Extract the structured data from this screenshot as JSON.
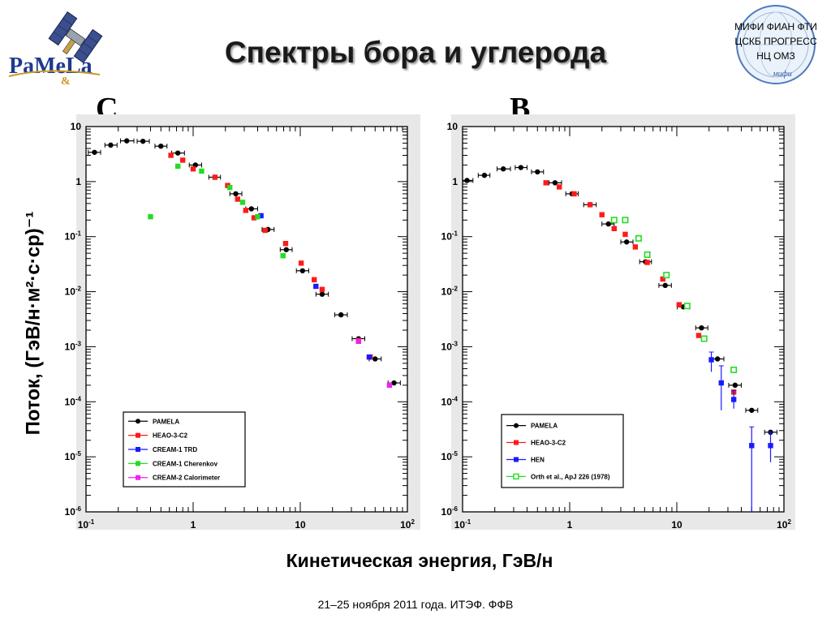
{
  "slide": {
    "title": "Спектры бора и углерода",
    "y_axis_title": "Поток, (ГэВ/н·м²·с·ср)⁻¹",
    "x_axis_title": "Кинетическая энергия, ГэВ/н",
    "footer": "21–25 ноября 2011 года. ИТЭФ. ФФВ"
  },
  "logo": {
    "text_main": "PaMeLa",
    "text_sub": "&",
    "icon": "satellite-icon"
  },
  "partners": {
    "line1": "МИФИ   ФИАН   ФТИ",
    "line2": "ЦСКБ  ПРОГРЕСС",
    "line3": "НЦ  ОМЗ",
    "signature": "мифи",
    "icon": "globe-seal-icon"
  },
  "colors": {
    "pamela": "#000000",
    "heao": "#ff1a1a",
    "cream1_trd": "#1a1aff",
    "cream1_cherenkov": "#22dd22",
    "cream2_calorimeter": "#ee22ee",
    "hen": "#1a1aff",
    "orth": "#22dd22"
  },
  "chart_data": [
    {
      "type": "scatter",
      "panel_letter": "C",
      "x_scale": "log",
      "y_scale": "log",
      "xlim": [
        0.1,
        100
      ],
      "ylim": [
        1e-06,
        10
      ],
      "x_ticks": [
        "10",
        "-1",
        "1",
        "",
        "10",
        "",
        "10",
        "2"
      ],
      "y_ticks": [
        {
          "base": "10",
          "exp": ""
        },
        {
          "base": "1",
          "exp": ""
        },
        {
          "base": "10",
          "exp": "-1"
        },
        {
          "base": "10",
          "exp": "-2"
        },
        {
          "base": "10",
          "exp": "-3"
        },
        {
          "base": "10",
          "exp": "-4"
        },
        {
          "base": "10",
          "exp": "-5"
        },
        {
          "base": "10",
          "exp": "-6"
        }
      ],
      "legend_position": "bottom-left",
      "series": [
        {
          "name": "PAMELA",
          "color_key": "pamela",
          "marker": "circle",
          "points": [
            {
              "x": 0.12,
              "y": 3.4,
              "xlo": 0.105,
              "xhi": 0.137
            },
            {
              "x": 0.17,
              "y": 4.6,
              "xlo": 0.15,
              "xhi": 0.195
            },
            {
              "x": 0.24,
              "y": 5.5,
              "xlo": 0.21,
              "xhi": 0.28
            },
            {
              "x": 0.34,
              "y": 5.4,
              "xlo": 0.3,
              "xhi": 0.39
            },
            {
              "x": 0.5,
              "y": 4.4,
              "xlo": 0.44,
              "xhi": 0.57
            },
            {
              "x": 0.72,
              "y": 3.3,
              "xlo": 0.63,
              "xhi": 0.83
            },
            {
              "x": 1.05,
              "y": 2.0,
              "xlo": 0.92,
              "xhi": 1.2
            },
            {
              "x": 1.6,
              "y": 1.2,
              "xlo": 1.4,
              "xhi": 1.8
            },
            {
              "x": 2.5,
              "y": 0.6,
              "xlo": 2.2,
              "xhi": 2.85
            },
            {
              "x": 3.5,
              "y": 0.32,
              "xlo": 3.1,
              "xhi": 4.0
            },
            {
              "x": 5.0,
              "y": 0.135,
              "xlo": 4.4,
              "xhi": 5.7
            },
            {
              "x": 7.4,
              "y": 0.058,
              "xlo": 6.5,
              "xhi": 8.4
            },
            {
              "x": 10.5,
              "y": 0.024,
              "xlo": 9.2,
              "xhi": 12
            },
            {
              "x": 16,
              "y": 0.009,
              "xlo": 14,
              "xhi": 18.3
            },
            {
              "x": 24,
              "y": 0.0038,
              "xlo": 21,
              "xhi": 27.5
            },
            {
              "x": 35,
              "y": 0.0014,
              "xlo": 30.5,
              "xhi": 40
            },
            {
              "x": 50,
              "y": 0.0006,
              "xlo": 44,
              "xhi": 57
            },
            {
              "x": 75,
              "y": 0.00022,
              "xlo": 66,
              "xhi": 86
            }
          ]
        },
        {
          "name": "HEAO-3-C2",
          "color_key": "heao",
          "marker": "square",
          "points": [
            {
              "x": 0.62,
              "y": 3.0
            },
            {
              "x": 0.8,
              "y": 2.45
            },
            {
              "x": 1.0,
              "y": 1.7
            },
            {
              "x": 1.6,
              "y": 1.2
            },
            {
              "x": 2.1,
              "y": 0.85
            },
            {
              "x": 2.6,
              "y": 0.48
            },
            {
              "x": 3.1,
              "y": 0.3
            },
            {
              "x": 3.7,
              "y": 0.22
            },
            {
              "x": 4.7,
              "y": 0.13
            },
            {
              "x": 7.3,
              "y": 0.075
            },
            {
              "x": 10.2,
              "y": 0.033
            },
            {
              "x": 13.5,
              "y": 0.0165
            },
            {
              "x": 16,
              "y": 0.011
            },
            {
              "x": 35,
              "y": 0.0013
            },
            {
              "x": 45,
              "y": 0.00065
            }
          ]
        },
        {
          "name": "CREAM-1 TRD",
          "color_key": "cream1_trd",
          "marker": "square",
          "points": [
            {
              "x": 4.3,
              "y": 0.24
            },
            {
              "x": 14,
              "y": 0.0125
            },
            {
              "x": 44,
              "y": 0.00065
            }
          ]
        },
        {
          "name": "CREAM-1 Cherenkov",
          "color_key": "cream1_cherenkov",
          "marker": "square",
          "points": [
            {
              "x": 0.4,
              "y": 0.23
            },
            {
              "x": 0.72,
              "y": 1.9
            },
            {
              "x": 1.2,
              "y": 1.55
            },
            {
              "x": 2.2,
              "y": 0.78
            },
            {
              "x": 2.9,
              "y": 0.42
            },
            {
              "x": 4.0,
              "y": 0.23
            },
            {
              "x": 6.9,
              "y": 0.045
            }
          ]
        },
        {
          "name": "CREAM-2 Calorimeter",
          "color_key": "cream2_calorimeter",
          "marker": "square",
          "points": [
            {
              "x": 35,
              "y": 0.00125
            },
            {
              "x": 68,
              "y": 0.0002
            }
          ]
        }
      ]
    },
    {
      "type": "scatter",
      "panel_letter": "B",
      "x_scale": "log",
      "y_scale": "log",
      "xlim": [
        0.1,
        100
      ],
      "ylim": [
        1e-06,
        10
      ],
      "x_ticks": [
        "10",
        "-1",
        "1",
        "",
        "10",
        "",
        "10",
        "2"
      ],
      "y_ticks": [
        {
          "base": "10",
          "exp": ""
        },
        {
          "base": "1",
          "exp": ""
        },
        {
          "base": "10",
          "exp": "-1"
        },
        {
          "base": "10",
          "exp": "-2"
        },
        {
          "base": "10",
          "exp": "-3"
        },
        {
          "base": "10",
          "exp": "-4"
        },
        {
          "base": "10",
          "exp": "-5"
        },
        {
          "base": "10",
          "exp": "-6"
        }
      ],
      "legend_position": "bottom-right",
      "series": [
        {
          "name": "PAMELA",
          "color_key": "pamela",
          "marker": "circle",
          "points": [
            {
              "x": 0.11,
              "y": 1.05,
              "xlo": 0.1,
              "xhi": 0.125
            },
            {
              "x": 0.16,
              "y": 1.3,
              "xlo": 0.14,
              "xhi": 0.18
            },
            {
              "x": 0.24,
              "y": 1.7,
              "xlo": 0.21,
              "xhi": 0.28
            },
            {
              "x": 0.35,
              "y": 1.8,
              "xlo": 0.31,
              "xhi": 0.4
            },
            {
              "x": 0.5,
              "y": 1.5,
              "xlo": 0.44,
              "xhi": 0.57
            },
            {
              "x": 0.73,
              "y": 0.95,
              "xlo": 0.64,
              "xhi": 0.84
            },
            {
              "x": 1.05,
              "y": 0.6,
              "xlo": 0.92,
              "xhi": 1.2
            },
            {
              "x": 1.55,
              "y": 0.38,
              "xlo": 1.35,
              "xhi": 1.77
            },
            {
              "x": 2.3,
              "y": 0.17,
              "xlo": 2.0,
              "xhi": 2.6
            },
            {
              "x": 3.4,
              "y": 0.08,
              "xlo": 3.0,
              "xhi": 3.9
            },
            {
              "x": 5.1,
              "y": 0.035,
              "xlo": 4.5,
              "xhi": 5.8
            },
            {
              "x": 7.8,
              "y": 0.013,
              "xlo": 6.8,
              "xhi": 8.9
            },
            {
              "x": 11.5,
              "y": 0.0053,
              "xlo": 10.1,
              "xhi": 13.1
            },
            {
              "x": 17,
              "y": 0.0022,
              "xlo": 15,
              "xhi": 19.5
            },
            {
              "x": 24,
              "y": 0.0006,
              "xlo": 21,
              "xhi": 27.5
            },
            {
              "x": 35,
              "y": 0.0002,
              "xlo": 30.5,
              "xhi": 40
            },
            {
              "x": 50,
              "y": 7e-05,
              "xlo": 44,
              "xhi": 57
            },
            {
              "x": 75,
              "y": 2.8e-05,
              "xlo": 66,
              "xhi": 86
            }
          ]
        },
        {
          "name": "HEAO-3-C2",
          "color_key": "heao",
          "marker": "square",
          "points": [
            {
              "x": 0.6,
              "y": 0.95
            },
            {
              "x": 0.8,
              "y": 0.8
            },
            {
              "x": 1.1,
              "y": 0.6
            },
            {
              "x": 1.55,
              "y": 0.38
            },
            {
              "x": 2.0,
              "y": 0.25
            },
            {
              "x": 2.6,
              "y": 0.14
            },
            {
              "x": 3.3,
              "y": 0.11
            },
            {
              "x": 4.1,
              "y": 0.065
            },
            {
              "x": 5.3,
              "y": 0.034
            },
            {
              "x": 7.4,
              "y": 0.017
            },
            {
              "x": 10.5,
              "y": 0.0058
            },
            {
              "x": 16,
              "y": 0.0016
            },
            {
              "x": 34,
              "y": 0.00015
            }
          ]
        },
        {
          "name": "HEN",
          "color_key": "hen",
          "marker": "square",
          "points": [
            {
              "x": 21,
              "y": 0.00058,
              "ylo": 0.00035,
              "yhi": 0.0008
            },
            {
              "x": 26,
              "y": 0.00022,
              "ylo": 7e-05,
              "yhi": 0.00045
            },
            {
              "x": 34,
              "y": 0.00011,
              "ylo": 7.5e-05,
              "yhi": 0.00016
            },
            {
              "x": 50,
              "y": 1.6e-05,
              "ylo": 1e-06,
              "yhi": 3.5e-05
            },
            {
              "x": 75,
              "y": 1.6e-05,
              "ylo": 8e-06,
              "yhi": 2.8e-05
            }
          ]
        },
        {
          "name": "Orth et al., ApJ 226 (1978)",
          "color_key": "orth",
          "marker": "open-square",
          "points": [
            {
              "x": 2.6,
              "y": 0.2
            },
            {
              "x": 3.3,
              "y": 0.2
            },
            {
              "x": 4.4,
              "y": 0.093
            },
            {
              "x": 5.3,
              "y": 0.047
            },
            {
              "x": 8.0,
              "y": 0.02
            },
            {
              "x": 12.5,
              "y": 0.0055
            },
            {
              "x": 18,
              "y": 0.0014
            },
            {
              "x": 34,
              "y": 0.00038
            }
          ]
        }
      ]
    }
  ]
}
